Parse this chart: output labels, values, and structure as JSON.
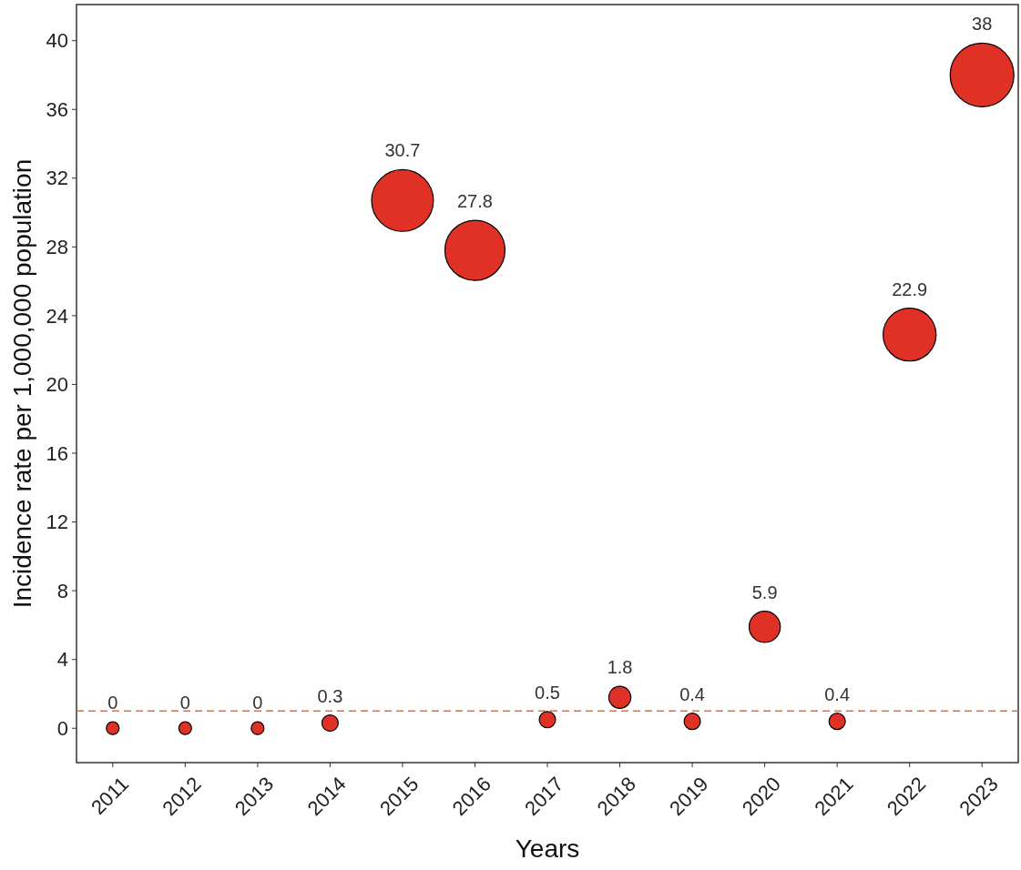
{
  "chart_data": {
    "type": "bubble",
    "xlabel": "Years",
    "ylabel": "Incidence rate per 1,000,000 population",
    "categories": [
      "2011",
      "2012",
      "2013",
      "2014",
      "2015",
      "2016",
      "2017",
      "2018",
      "2019",
      "2020",
      "2021",
      "2022",
      "2023"
    ],
    "series": [
      {
        "color": "#e03127",
        "values": [
          0,
          0,
          0,
          0.3,
          30.7,
          27.8,
          0.5,
          1.8,
          0.4,
          5.9,
          0.4,
          22.9,
          38
        ],
        "sizes": [
          0.04,
          0.04,
          0.04,
          0.066,
          0.94,
          0.89,
          0.066,
          0.12,
          0.066,
          0.24,
          0.066,
          0.69,
          1
        ]
      }
    ],
    "data_labels": true,
    "ylim": [
      -2,
      42.1
    ],
    "yticks": [
      0,
      4,
      8,
      12,
      16,
      20,
      24,
      28,
      32,
      36,
      40
    ],
    "ref_lines": [
      {
        "axis": "y",
        "value": 1,
        "color": "#f26b2a",
        "line_style": "dashed"
      }
    ],
    "grid": false
  }
}
